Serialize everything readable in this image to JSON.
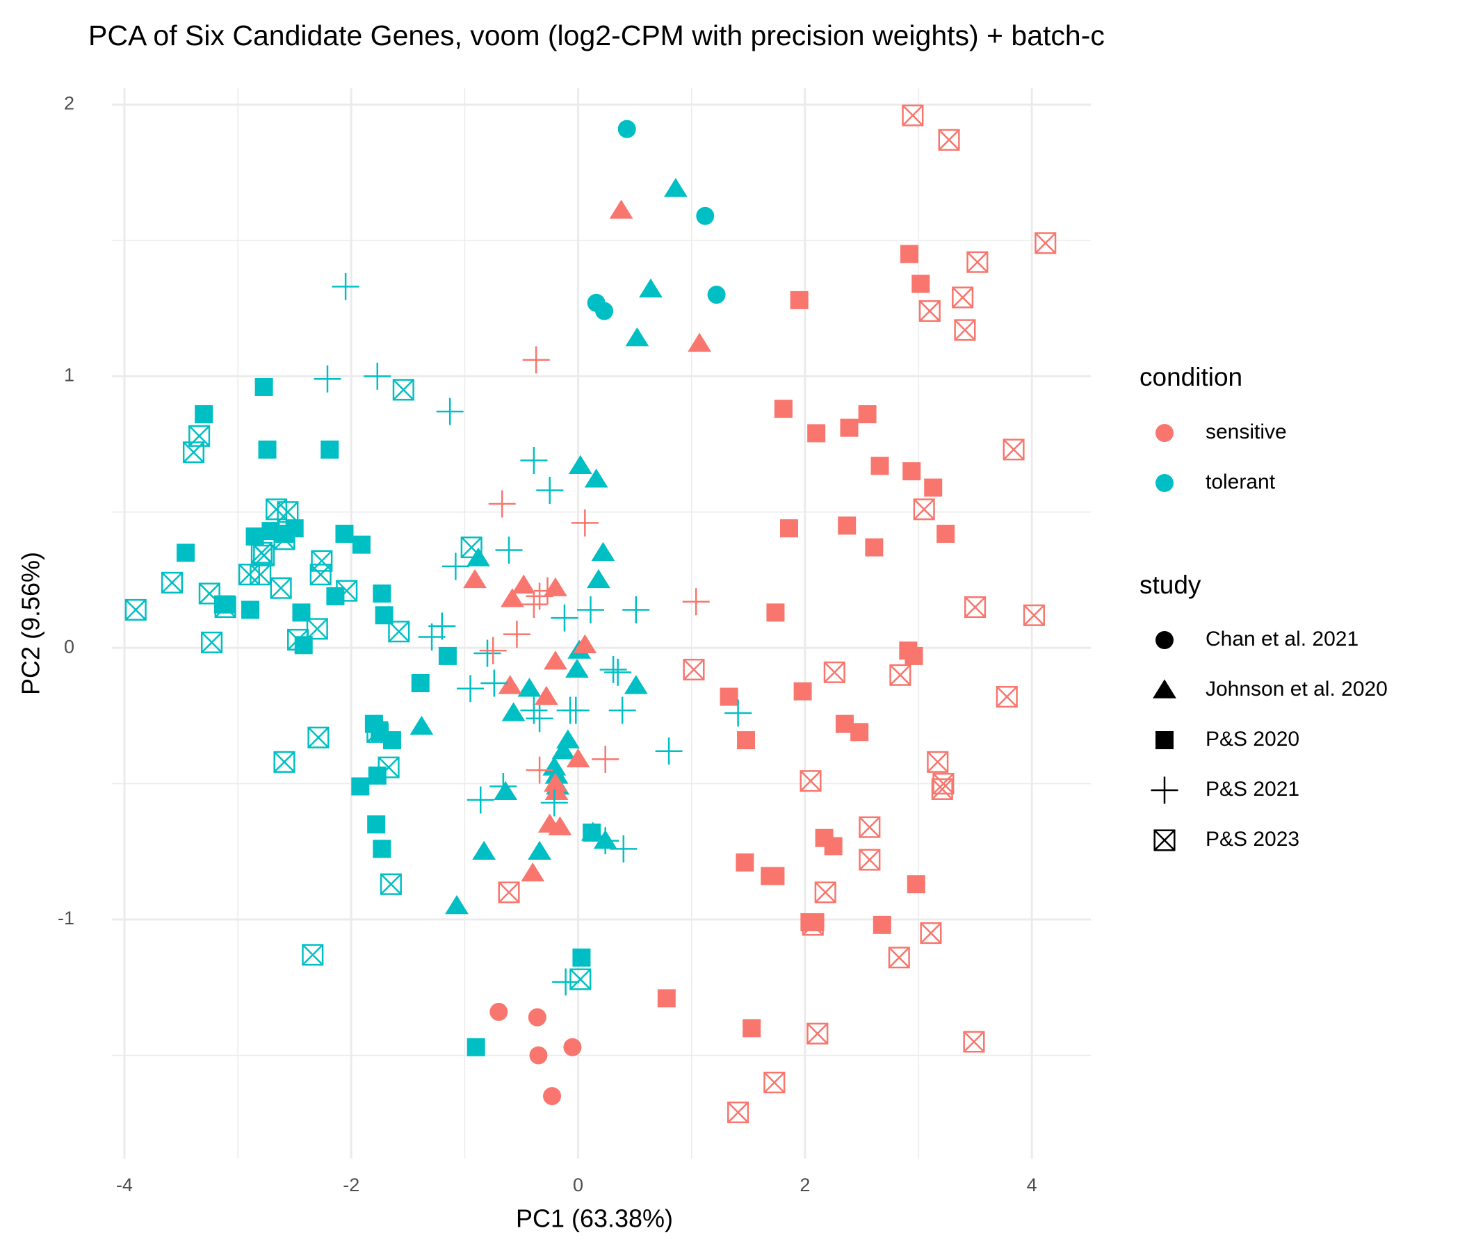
{
  "chart_data": {
    "type": "scatter",
    "title": "PCA of Six Candidate Genes, voom (log2-CPM with precision weights)  + batch-c",
    "x_label": "PC1 (63.38%)",
    "y_label": "PC2 (9.56%)",
    "xlim": [
      -4.11,
      4.52
    ],
    "ylim": [
      -1.88,
      2.06
    ],
    "xticks": [
      -4,
      -2,
      0,
      2,
      4
    ],
    "yticks": [
      -1,
      0,
      1,
      2
    ],
    "x_minor_grid": [
      -3,
      -1,
      1,
      3
    ],
    "y_minor_grid": [
      -1.5,
      -0.5,
      0.5,
      1.5
    ],
    "grid": true,
    "legend": [
      {
        "title": "condition",
        "items": [
          {
            "name": "sensitive",
            "color": "#F8766D"
          },
          {
            "name": "tolerant",
            "color": "#00BFC4"
          }
        ]
      },
      {
        "title": "study",
        "items": [
          {
            "name": "Chan et al. 2021",
            "shape": "circle"
          },
          {
            "name": "Johnson et al. 2020",
            "shape": "triangle"
          },
          {
            "name": "P&S 2020",
            "shape": "square"
          },
          {
            "name": "P&S 2021",
            "shape": "plus"
          },
          {
            "name": "P&S 2023",
            "shape": "square-cross"
          }
        ]
      }
    ],
    "series": [
      {
        "condition": "tolerant",
        "study": "Chan et al. 2021",
        "x": [
          0.43,
          1.12,
          0.16,
          0.23,
          1.22
        ],
        "y": [
          1.91,
          1.59,
          1.27,
          1.24,
          1.3
        ]
      },
      {
        "condition": "sensitive",
        "study": "Chan et al. 2021",
        "x": [
          -0.7,
          -0.36,
          -0.35,
          -0.05,
          -0.23
        ],
        "y": [
          -1.34,
          -1.36,
          -1.5,
          -1.47,
          -1.65
        ]
      },
      {
        "condition": "tolerant",
        "study": "Johnson et al. 2020",
        "x": [
          0.86,
          0.64,
          0.52,
          0.02,
          0.16,
          0.22,
          -0.88,
          0.18,
          0.51,
          0.01,
          -0.01,
          -0.43,
          -0.57,
          -0.09,
          -0.13,
          -0.21,
          -0.64,
          -0.19,
          -1.38,
          -0.83,
          -0.34,
          -1.07,
          0.13,
          0.24,
          -0.18
        ],
        "y": [
          1.69,
          1.32,
          1.14,
          0.67,
          0.62,
          0.35,
          0.33,
          0.25,
          -0.14,
          -0.01,
          -0.08,
          -0.15,
          -0.24,
          -0.34,
          -0.38,
          -0.44,
          -0.53,
          -0.47,
          -0.29,
          -0.75,
          -0.75,
          -0.95,
          -0.68,
          -0.71,
          -0.51
        ]
      },
      {
        "condition": "sensitive",
        "study": "Johnson et al. 2020",
        "x": [
          0.38,
          1.07,
          -0.91,
          -0.48,
          -0.58,
          -0.2,
          0.06,
          -0.2,
          -0.6,
          -0.28,
          0.0,
          -0.2,
          -0.19,
          -0.25,
          -0.16,
          -0.4
        ],
        "y": [
          1.61,
          1.12,
          0.25,
          0.23,
          0.18,
          0.22,
          0.01,
          -0.05,
          -0.14,
          -0.18,
          -0.41,
          -0.5,
          -0.53,
          -0.65,
          -0.66,
          -0.83
        ]
      },
      {
        "condition": "tolerant",
        "study": "P&S 2020",
        "x": [
          -2.77,
          -3.3,
          -2.74,
          -2.19,
          -3.46,
          -2.85,
          -2.71,
          -2.59,
          -2.5,
          -2.06,
          -1.91,
          -1.73,
          -3.1,
          -3.13,
          -2.14,
          -2.89,
          -2.44,
          -2.42,
          -1.71,
          -1.15,
          -1.39,
          -1.8,
          -1.75,
          -1.64,
          -1.77,
          -1.92,
          -1.78,
          -1.73,
          0.12,
          0.03,
          -0.9
        ],
        "y": [
          0.96,
          0.86,
          0.73,
          0.73,
          0.35,
          0.41,
          0.43,
          0.42,
          0.44,
          0.42,
          0.38,
          0.2,
          0.16,
          0.16,
          0.19,
          0.14,
          0.13,
          0.01,
          0.12,
          -0.03,
          -0.13,
          -0.28,
          -0.31,
          -0.34,
          -0.47,
          -0.51,
          -0.65,
          -0.74,
          -0.68,
          -1.14,
          -1.47
        ]
      },
      {
        "condition": "sensitive",
        "study": "P&S 2020",
        "x": [
          2.92,
          3.02,
          1.95,
          1.81,
          2.1,
          2.55,
          2.39,
          2.66,
          2.94,
          3.13,
          1.86,
          2.37,
          2.61,
          3.24,
          1.74,
          2.91,
          2.96,
          1.33,
          1.98,
          1.48,
          2.35,
          2.48,
          1.47,
          1.69,
          1.74,
          2.17,
          2.25,
          2.98,
          2.68,
          2.04,
          2.09,
          0.78,
          1.53
        ],
        "y": [
          1.45,
          1.34,
          1.28,
          0.88,
          0.79,
          0.86,
          0.81,
          0.67,
          0.65,
          0.59,
          0.44,
          0.45,
          0.37,
          0.42,
          0.13,
          -0.01,
          -0.03,
          -0.18,
          -0.16,
          -0.34,
          -0.28,
          -0.31,
          -0.79,
          -0.84,
          -0.84,
          -0.7,
          -0.73,
          -0.87,
          -1.02,
          -1.01,
          -1.01,
          -1.29,
          -1.4
        ]
      },
      {
        "condition": "tolerant",
        "study": "P&S 2021",
        "x": [
          -2.05,
          -2.21,
          -1.77,
          -1.13,
          -0.39,
          -0.25,
          -0.61,
          -1.08,
          -1.2,
          -1.29,
          -0.8,
          0.11,
          -0.12,
          0.51,
          0.35,
          0.31,
          -0.95,
          -0.74,
          -0.39,
          -0.34,
          -0.07,
          -0.02,
          0.39,
          0.8,
          1.41,
          -0.86,
          -0.66,
          -0.21,
          -0.11,
          0.24,
          0.4
        ],
        "y": [
          1.33,
          0.99,
          1.0,
          0.87,
          0.69,
          0.58,
          0.36,
          0.3,
          0.08,
          0.04,
          -0.02,
          0.14,
          0.11,
          0.14,
          -0.09,
          -0.08,
          -0.15,
          -0.13,
          -0.23,
          -0.26,
          -0.23,
          -0.23,
          -0.23,
          -0.38,
          -0.24,
          -0.56,
          -0.51,
          -0.57,
          -1.23,
          -0.71,
          -0.74
        ]
      },
      {
        "condition": "sensitive",
        "study": "P&S 2021",
        "x": [
          -0.37,
          -0.67,
          0.06,
          1.04,
          -0.39,
          -0.34,
          -0.27,
          -0.54,
          -0.75,
          0.24,
          -0.34
        ],
        "y": [
          1.06,
          0.53,
          0.46,
          0.17,
          0.16,
          0.19,
          0.21,
          0.05,
          -0.01,
          -0.41,
          -0.45
        ]
      },
      {
        "condition": "tolerant",
        "study": "P&S 2023",
        "x": [
          -1.54,
          -3.34,
          -3.39,
          -2.66,
          -2.56,
          -2.59,
          -2.79,
          -2.9,
          -2.8,
          -2.26,
          -2.27,
          -2.04,
          -3.58,
          -3.25,
          -3.11,
          -3.9,
          -2.62,
          -2.47,
          -2.3,
          -3.23,
          -1.58,
          -0.94,
          -2.29,
          -1.77,
          -1.67,
          -2.59,
          -1.65,
          -2.34,
          0.02,
          -2.77
        ],
        "y": [
          0.95,
          0.78,
          0.72,
          0.51,
          0.5,
          0.4,
          0.35,
          0.27,
          0.27,
          0.32,
          0.27,
          0.21,
          0.24,
          0.2,
          0.15,
          0.14,
          0.22,
          0.03,
          0.07,
          0.02,
          0.06,
          0.37,
          -0.33,
          -0.31,
          -0.44,
          -0.42,
          -0.87,
          -1.13,
          -1.22,
          0.34
        ]
      },
      {
        "condition": "sensitive",
        "study": "P&S 2023",
        "x": [
          2.95,
          3.27,
          4.12,
          3.52,
          3.1,
          3.39,
          3.41,
          3.84,
          3.05,
          3.5,
          4.02,
          1.02,
          2.26,
          2.84,
          3.78,
          3.17,
          3.22,
          3.21,
          2.05,
          2.57,
          2.57,
          2.18,
          -0.61,
          2.07,
          3.11,
          2.83,
          2.11,
          3.49,
          1.73,
          1.41
        ],
        "y": [
          1.96,
          1.87,
          1.49,
          1.42,
          1.24,
          1.29,
          1.17,
          0.73,
          0.51,
          0.15,
          0.12,
          -0.08,
          -0.09,
          -0.1,
          -0.18,
          -0.42,
          -0.5,
          -0.52,
          -0.49,
          -0.66,
          -0.78,
          -0.9,
          -0.9,
          -1.02,
          -1.05,
          -1.14,
          -1.42,
          -1.45,
          -1.6,
          -1.71
        ]
      }
    ]
  }
}
